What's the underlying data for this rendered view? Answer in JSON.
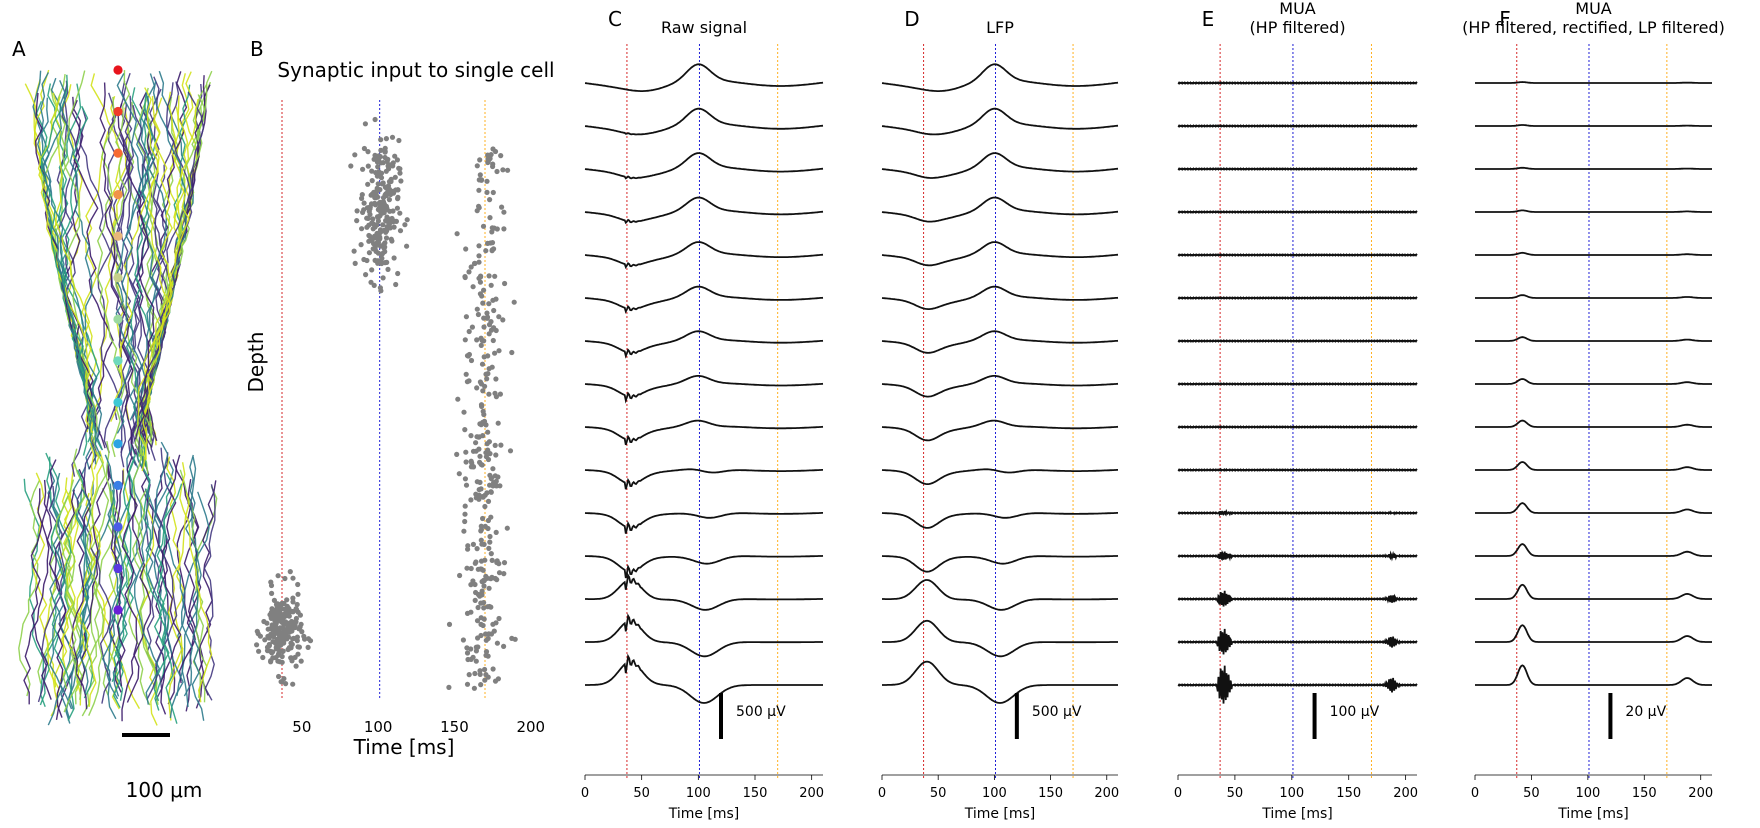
{
  "chart_data": [
    {
      "panel_label": "A",
      "type": "other",
      "scalebar_label": "100 μm",
      "n_electrodes": 14,
      "electrode_colors": [
        "#e8141c",
        "#f03c2a",
        "#f76a32",
        "#f0934a",
        "#e8b77a",
        "#c7d08a",
        "#9bd9a0",
        "#6ed9bd",
        "#3ec8d4",
        "#2ba4e3",
        "#3a7fe6",
        "#4b5ce8",
        "#5a38e0",
        "#6a1fd6"
      ],
      "fiber_colors": [
        "#3b1b6a",
        "#2c7a8c",
        "#28a07f",
        "#8fd04c",
        "#d3e21b",
        "#43377f"
      ]
    },
    {
      "panel_label": "B",
      "type": "scatter",
      "title": "Synaptic input to single cell",
      "xlabel": "Time [ms]",
      "ylabel": "Depth",
      "xticks": [
        50,
        100,
        150,
        200
      ],
      "xlim": [
        0,
        210
      ],
      "ylim": [
        0,
        1
      ],
      "vlines": [
        {
          "x": 37,
          "color": "#d62728"
        },
        {
          "x": 101,
          "color": "#1f1fd6"
        },
        {
          "x": 170,
          "color": "#ffb020"
        }
      ],
      "point_color": "#808080",
      "clusters": [
        {
          "x_center": 37,
          "x_spread": 9,
          "depth_center": 0.1,
          "depth_spread": 0.06,
          "n": 220
        },
        {
          "x_center": 101,
          "x_spread": 9,
          "depth_center": 0.83,
          "depth_spread": 0.1,
          "n": 240
        },
        {
          "x_center": 170,
          "x_spread": 10,
          "depth_min": 0.0,
          "depth_max": 0.94,
          "n": 330
        }
      ]
    },
    {
      "panel_label": "C",
      "type": "line",
      "title": "Raw signal",
      "xlabel": "Time [ms]",
      "xticks": [
        0,
        50,
        100,
        150,
        200
      ],
      "xlim": [
        0,
        210
      ],
      "scalebar": "500 μV",
      "traces": 15,
      "vlines": [
        37,
        101,
        170
      ]
    },
    {
      "panel_label": "D",
      "type": "line",
      "title": "LFP",
      "xlabel": "Time [ms]",
      "xticks": [
        0,
        50,
        100,
        150,
        200
      ],
      "xlim": [
        0,
        210
      ],
      "scalebar": "500 μV",
      "traces": 15,
      "vlines": [
        37,
        101,
        170
      ]
    },
    {
      "panel_label": "E",
      "type": "line",
      "title": "MUA",
      "subtitle": "(HP filtered)",
      "xlabel": "Time [ms]",
      "xticks": [
        0,
        50,
        100,
        150,
        200
      ],
      "xlim": [
        0,
        210
      ],
      "scalebar": "100 μV",
      "traces": 15,
      "vlines": [
        37,
        101,
        170
      ]
    },
    {
      "panel_label": "F",
      "type": "line",
      "title": "MUA",
      "subtitle": "(HP filtered, rectified, LP filtered)",
      "xlabel": "Time [ms]",
      "xticks": [
        0,
        50,
        100,
        150,
        200
      ],
      "xlim": [
        0,
        210
      ],
      "scalebar": "20 μV",
      "traces": 15,
      "vlines": [
        37,
        101,
        170
      ]
    }
  ]
}
